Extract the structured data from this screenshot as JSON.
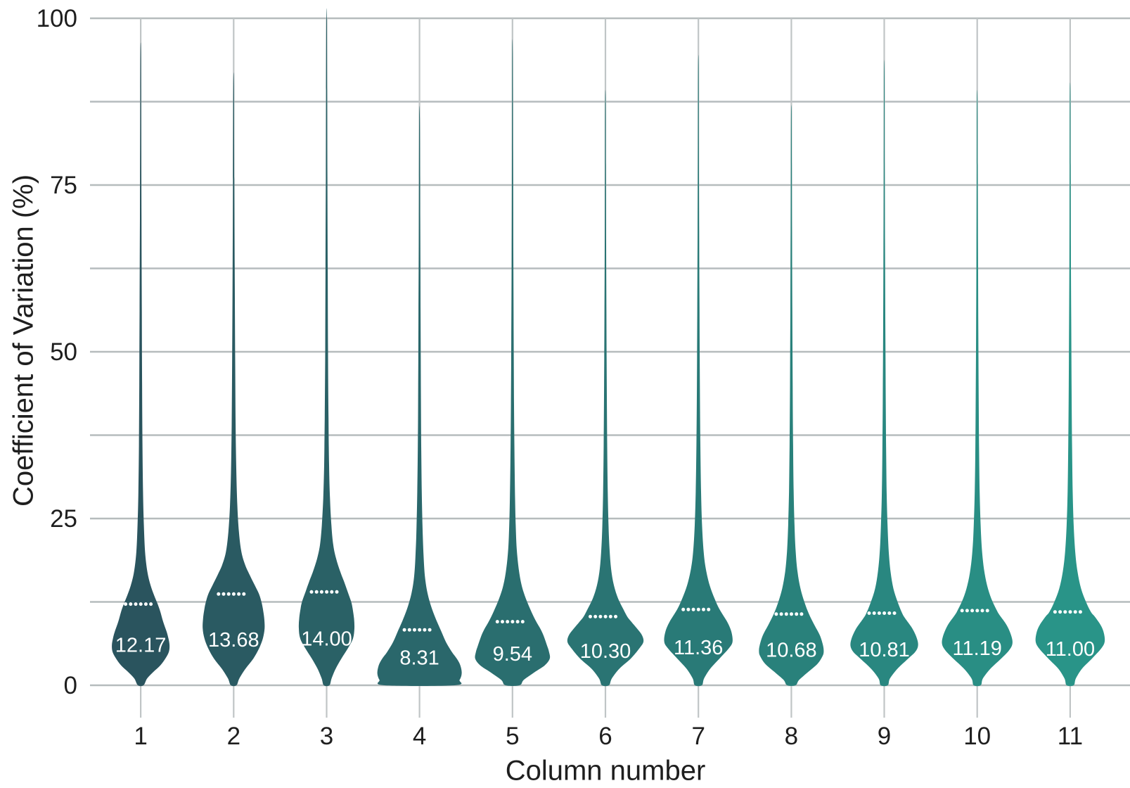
{
  "chart_data": {
    "type": "violin",
    "title": "",
    "xlabel": "Column number",
    "ylabel": "Coefficient of Variation (%)",
    "ylim": [
      0,
      100
    ],
    "yticks": [
      0,
      25,
      50,
      75,
      100
    ],
    "ytick_labels": [
      "0",
      "25",
      "50",
      "75",
      "100"
    ],
    "minor_gridline_step": 12.5,
    "grid": true,
    "legend": "none",
    "categories": [
      "1",
      "2",
      "3",
      "4",
      "5",
      "6",
      "7",
      "8",
      "9",
      "10",
      "11"
    ],
    "medians": [
      12.17,
      13.68,
      14.0,
      8.31,
      9.54,
      10.3,
      11.36,
      10.68,
      10.81,
      11.19,
      11.0
    ],
    "median_labels": [
      "12.17",
      "13.68",
      "14.00",
      "8.31",
      "9.54",
      "10.30",
      "11.36",
      "10.68",
      "10.81",
      "11.19",
      "11.00"
    ],
    "median_line_style": "dotted-white",
    "colors": [
      "#2a545e",
      "#2a5a62",
      "#2a6166",
      "#2a676b",
      "#2a6e6f",
      "#2a7473",
      "#297a77",
      "#29817b",
      "#298780",
      "#298e84",
      "#299488"
    ],
    "profiles": [
      [
        [
          0,
          4
        ],
        [
          1,
          9
        ],
        [
          2,
          18
        ],
        [
          3,
          28
        ],
        [
          4,
          35
        ],
        [
          5,
          40
        ],
        [
          6,
          41
        ],
        [
          7,
          39.5
        ],
        [
          8,
          37
        ],
        [
          9.5,
          32
        ],
        [
          11,
          28
        ],
        [
          12.2,
          24
        ],
        [
          13.5,
          19
        ],
        [
          15,
          14
        ],
        [
          17,
          9.5
        ],
        [
          20,
          6.2
        ],
        [
          24,
          4.5
        ],
        [
          29,
          3.3
        ],
        [
          36,
          2.5
        ],
        [
          45,
          2
        ],
        [
          56,
          1.6
        ],
        [
          70,
          1.1
        ],
        [
          84,
          0.7
        ],
        [
          95,
          0.4
        ]
      ],
      [
        [
          0,
          4
        ],
        [
          1,
          8
        ],
        [
          2.5,
          17
        ],
        [
          4,
          28
        ],
        [
          5.5,
          36
        ],
        [
          7,
          41.5
        ],
        [
          8.5,
          44
        ],
        [
          10,
          43.5
        ],
        [
          11.5,
          41.5
        ],
        [
          12.5,
          39.5
        ],
        [
          13.7,
          36
        ],
        [
          15,
          30
        ],
        [
          16.5,
          23
        ],
        [
          18,
          16.5
        ],
        [
          20,
          11
        ],
        [
          23,
          7.5
        ],
        [
          27,
          5.2
        ],
        [
          32,
          3.8
        ],
        [
          39,
          2.8
        ],
        [
          48,
          2.2
        ],
        [
          60,
          1.6
        ],
        [
          75,
          1
        ],
        [
          90,
          0.5
        ]
      ],
      [
        [
          0,
          4
        ],
        [
          1,
          7
        ],
        [
          2.5,
          13
        ],
        [
          4,
          21
        ],
        [
          5.5,
          30
        ],
        [
          7,
          37.5
        ],
        [
          8.5,
          39.5
        ],
        [
          10,
          39
        ],
        [
          11.5,
          37
        ],
        [
          12.5,
          35
        ],
        [
          14,
          30
        ],
        [
          15.5,
          25
        ],
        [
          17,
          19.5
        ],
        [
          19,
          13.5
        ],
        [
          21,
          9.5
        ],
        [
          24,
          6.8
        ],
        [
          28,
          4.8
        ],
        [
          33,
          3.5
        ],
        [
          40,
          2.7
        ],
        [
          50,
          2
        ],
        [
          62,
          1.6
        ],
        [
          76,
          1.1
        ],
        [
          88,
          0.8
        ],
        [
          100,
          0.4
        ]
      ],
      [
        [
          0,
          50
        ],
        [
          0.8,
          57
        ],
        [
          1.8,
          60
        ],
        [
          3,
          58
        ],
        [
          4,
          53
        ],
        [
          5,
          46
        ],
        [
          6.5,
          37.5
        ],
        [
          8.3,
          30
        ],
        [
          10,
          23
        ],
        [
          12,
          16
        ],
        [
          14,
          11
        ],
        [
          16.5,
          7.5
        ],
        [
          20,
          5.5
        ],
        [
          24,
          4.2
        ],
        [
          29,
          3.2
        ],
        [
          36,
          2.4
        ],
        [
          45,
          1.9
        ],
        [
          56,
          1.5
        ],
        [
          70,
          1
        ],
        [
          85,
          0.5
        ]
      ],
      [
        [
          0,
          10
        ],
        [
          0.8,
          16
        ],
        [
          2,
          32
        ],
        [
          3,
          46
        ],
        [
          4,
          53
        ],
        [
          5,
          52
        ],
        [
          6,
          49
        ],
        [
          7.5,
          44
        ],
        [
          8.5,
          39.5
        ],
        [
          9.5,
          34
        ],
        [
          11,
          27
        ],
        [
          13,
          19
        ],
        [
          15,
          13
        ],
        [
          17.5,
          8.8
        ],
        [
          20.5,
          6
        ],
        [
          24,
          4.6
        ],
        [
          28,
          3.7
        ],
        [
          34,
          2.9
        ],
        [
          42,
          2.2
        ],
        [
          52,
          1.7
        ],
        [
          65,
          1.2
        ],
        [
          80,
          0.8
        ],
        [
          95,
          0.4
        ]
      ],
      [
        [
          0,
          5
        ],
        [
          1,
          9
        ],
        [
          2.5,
          20
        ],
        [
          4,
          36
        ],
        [
          5.5,
          48
        ],
        [
          6.5,
          54
        ],
        [
          7.5,
          52
        ],
        [
          8.5,
          45
        ],
        [
          9.5,
          37
        ],
        [
          10.3,
          31
        ],
        [
          11.5,
          25
        ],
        [
          13,
          18
        ],
        [
          15,
          12
        ],
        [
          17.5,
          8
        ],
        [
          20.5,
          5.8
        ],
        [
          24,
          4.4
        ],
        [
          29,
          3.3
        ],
        [
          36,
          2.5
        ],
        [
          45,
          1.9
        ],
        [
          56,
          1.4
        ],
        [
          66,
          1
        ],
        [
          78,
          0.7
        ],
        [
          88,
          0.4
        ]
      ],
      [
        [
          0,
          5
        ],
        [
          1,
          8
        ],
        [
          2.5,
          17
        ],
        [
          4,
          30
        ],
        [
          5.5,
          43
        ],
        [
          6.5,
          48.5
        ],
        [
          8,
          47
        ],
        [
          9.5,
          41
        ],
        [
          11.4,
          30
        ],
        [
          13,
          23
        ],
        [
          15,
          16
        ],
        [
          17.5,
          10.5
        ],
        [
          20,
          7.5
        ],
        [
          24,
          5.2
        ],
        [
          29,
          3.8
        ],
        [
          36,
          2.8
        ],
        [
          45,
          2.1
        ],
        [
          56,
          1.6
        ],
        [
          68,
          1.1
        ],
        [
          81,
          0.7
        ],
        [
          93,
          0.4
        ]
      ],
      [
        [
          0,
          6
        ],
        [
          0.8,
          11
        ],
        [
          2,
          24
        ],
        [
          3.2,
          37
        ],
        [
          4.3,
          44
        ],
        [
          5,
          46
        ],
        [
          6,
          45
        ],
        [
          7.5,
          40.5
        ],
        [
          9,
          33
        ],
        [
          10.7,
          25
        ],
        [
          12.5,
          18.5
        ],
        [
          14.5,
          13
        ],
        [
          17,
          8.8
        ],
        [
          20,
          6.2
        ],
        [
          24,
          4.5
        ],
        [
          29,
          3.3
        ],
        [
          36,
          2.5
        ],
        [
          45,
          1.9
        ],
        [
          56,
          1.4
        ],
        [
          68,
          1
        ],
        [
          78,
          0.7
        ],
        [
          86,
          0.4
        ]
      ],
      [
        [
          0,
          5
        ],
        [
          1,
          8
        ],
        [
          2.5,
          19
        ],
        [
          4,
          34
        ],
        [
          5,
          44
        ],
        [
          5.9,
          48
        ],
        [
          7,
          46.5
        ],
        [
          8.5,
          40
        ],
        [
          10,
          30
        ],
        [
          10.8,
          25.5
        ],
        [
          12.5,
          19
        ],
        [
          14.5,
          13
        ],
        [
          17,
          9
        ],
        [
          20,
          6.4
        ],
        [
          24,
          4.7
        ],
        [
          29,
          3.4
        ],
        [
          36,
          2.6
        ],
        [
          45,
          2
        ],
        [
          55,
          1.5
        ],
        [
          66,
          1.1
        ],
        [
          78,
          0.7
        ],
        [
          92,
          0.4
        ]
      ],
      [
        [
          0,
          5
        ],
        [
          1,
          8
        ],
        [
          2.5,
          19
        ],
        [
          4,
          34
        ],
        [
          5.2,
          45
        ],
        [
          6.2,
          50
        ],
        [
          7.4,
          48.5
        ],
        [
          9,
          42
        ],
        [
          10.5,
          32
        ],
        [
          11.2,
          28
        ],
        [
          13,
          20
        ],
        [
          15,
          14
        ],
        [
          17.5,
          9.5
        ],
        [
          20.5,
          6.6
        ],
        [
          24,
          4.9
        ],
        [
          29,
          3.5
        ],
        [
          36,
          2.6
        ],
        [
          45,
          2
        ],
        [
          55,
          1.5
        ],
        [
          66,
          1.1
        ],
        [
          78,
          0.7
        ],
        [
          88,
          0.4
        ]
      ],
      [
        [
          0,
          5
        ],
        [
          1,
          8
        ],
        [
          2.5,
          17
        ],
        [
          4,
          31
        ],
        [
          5.5,
          44
        ],
        [
          6.5,
          49
        ],
        [
          7.8,
          48
        ],
        [
          9,
          43.5
        ],
        [
          10.3,
          35
        ],
        [
          11,
          29.5
        ],
        [
          12.5,
          22.5
        ],
        [
          14.5,
          15.5
        ],
        [
          17,
          10.5
        ],
        [
          20,
          7.2
        ],
        [
          24,
          5
        ],
        [
          29,
          3.6
        ],
        [
          36,
          2.7
        ],
        [
          45,
          2
        ],
        [
          55,
          1.5
        ],
        [
          66,
          1
        ],
        [
          78,
          0.7
        ],
        [
          89,
          0.4
        ]
      ]
    ]
  },
  "style": {
    "background": "#ffffff",
    "grid_color_h": "#b6bcbd",
    "grid_color_v": "#c0c5c6",
    "text_color": "#1e1e1e",
    "median_dash_color": "#ffffff"
  }
}
